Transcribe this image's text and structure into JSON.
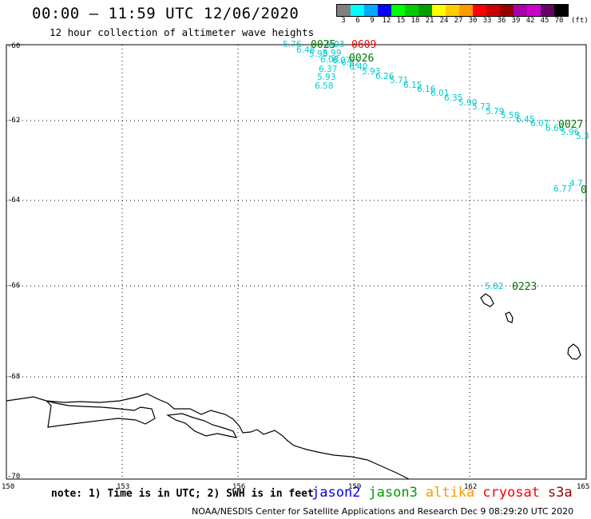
{
  "header": {
    "title": "00:00 – 11:59 UTC 12/06/2020",
    "subtitle": "12 hour collection of altimeter wave heights"
  },
  "legend": {
    "colors": [
      "#808080",
      "#00ffff",
      "#00aaff",
      "#0000ff",
      "#00ff00",
      "#00cc00",
      "#00a000",
      "#ffff00",
      "#ffcc00",
      "#ff9900",
      "#ff0000",
      "#cc0000",
      "#990000",
      "#aa00aa",
      "#cc00cc",
      "#660066",
      "#000000"
    ],
    "labels": [
      "3",
      "6",
      "9",
      "12",
      "15",
      "18",
      "21",
      "24",
      "27",
      "30",
      "33",
      "36",
      "39",
      "42",
      "45",
      "70"
    ],
    "unit": "(ft)"
  },
  "axes": {
    "y_labels": [
      "-60",
      "-62",
      "-64",
      "-66",
      "-68",
      "-70"
    ],
    "x_labels": [
      "150",
      "153",
      "156",
      "159",
      "162",
      "165"
    ]
  },
  "observations": [
    {
      "text": "5.76",
      "color": "#00cccc"
    },
    {
      "text": "6.48",
      "color": "#00cccc"
    },
    {
      "text": "5.98",
      "color": "#00cccc"
    },
    {
      "text": "6.03",
      "color": "#00cccc"
    },
    {
      "text": "5.99",
      "color": "#00cccc"
    },
    {
      "text": "6.08",
      "color": "#00cccc"
    },
    {
      "text": "6.07",
      "color": "#00cccc"
    },
    {
      "text": "6.62",
      "color": "#00cccc"
    },
    {
      "text": "6.40",
      "color": "#00cccc"
    },
    {
      "text": "6.37",
      "color": "#00cccc"
    },
    {
      "text": "5.93",
      "color": "#00cccc"
    },
    {
      "text": "6.58",
      "color": "#00cccc"
    },
    {
      "text": "5.93",
      "color": "#00cccc"
    },
    {
      "text": "6.26",
      "color": "#00cccc"
    },
    {
      "text": "5.71",
      "color": "#00cccc"
    },
    {
      "text": "6.15",
      "color": "#00cccc"
    },
    {
      "text": "6.16",
      "color": "#00cccc"
    },
    {
      "text": "6.01",
      "color": "#00cccc"
    },
    {
      "text": "6.35",
      "color": "#00cccc"
    },
    {
      "text": "5.90",
      "color": "#00cccc"
    },
    {
      "text": "5.73",
      "color": "#00cccc"
    },
    {
      "text": "5.79",
      "color": "#00cccc"
    },
    {
      "text": "5.58",
      "color": "#00cccc"
    },
    {
      "text": "6.45",
      "color": "#00cccc"
    },
    {
      "text": "6.07",
      "color": "#00cccc"
    },
    {
      "text": "6.66",
      "color": "#00cccc"
    },
    {
      "text": "5.96",
      "color": "#00cccc"
    },
    {
      "text": "5.3",
      "color": "#00cccc"
    },
    {
      "text": "4.7",
      "color": "#00cccc"
    },
    {
      "text": "6.77",
      "color": "#00cccc"
    },
    {
      "text": "5.82",
      "color": "#00cccc"
    }
  ],
  "time_labels": [
    {
      "text": "0025",
      "color": "#007700"
    },
    {
      "text": "0609",
      "color": "#ee0000"
    },
    {
      "text": "0026",
      "color": "#007700"
    },
    {
      "text": "0027",
      "color": "#007700"
    },
    {
      "text": "0",
      "color": "#007700"
    },
    {
      "text": "0223",
      "color": "#007700"
    }
  ],
  "footnote": "note: 1) Time is in UTC; 2) SWH is in feet",
  "satellites": [
    {
      "name": "jason2",
      "color": "#0000ff"
    },
    {
      "name": "jason3",
      "color": "#009900"
    },
    {
      "name": "altika",
      "color": "#ff9900"
    },
    {
      "name": "cryosat",
      "color": "#ff0000"
    },
    {
      "name": "s3a",
      "color": "#990000"
    }
  ],
  "credit": "NOAA/NESDIS Center for Satellite Applications and Research   Dec  9 08:29:20 UTC 2020"
}
